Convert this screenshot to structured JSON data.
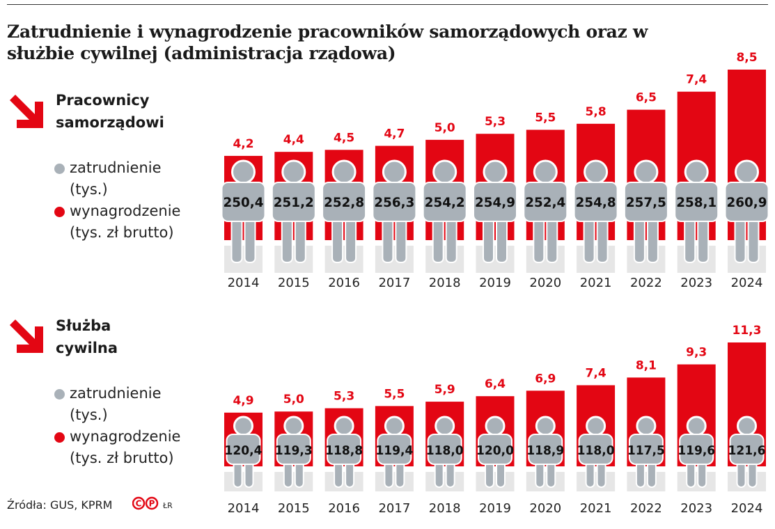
{
  "title": "Zatrudnienie i wynagrodzenie pracowników samorządowych oraz w służbie cywilnej (administracja rządowa)",
  "legend": {
    "employment": "zatrudnienie",
    "employment_unit": "(tys.)",
    "salary": "wynagrodzenie",
    "salary_unit": "(tys. zł brutto)"
  },
  "source": "Źródła: GUS, KPRM",
  "logo_text": "CP ŁR",
  "colors": {
    "salary": "#e30613",
    "employment": "#a9b1b8",
    "fade": "#e6e6e6"
  },
  "chart_data": [
    {
      "type": "bar",
      "title": "Pracownicy samorządowi",
      "title_lines": [
        "Pracownicy",
        "samorządowi"
      ],
      "categories": [
        "2014",
        "2015",
        "2016",
        "2017",
        "2018",
        "2019",
        "2020",
        "2021",
        "2022",
        "2023",
        "2024"
      ],
      "series": [
        {
          "name": "wynagrodzenie (tys. zł brutto)",
          "values": [
            4.2,
            4.4,
            4.5,
            4.7,
            5.0,
            5.3,
            5.5,
            5.8,
            6.5,
            7.4,
            8.5
          ],
          "labels": [
            "4,2",
            "4,4",
            "4,5",
            "4,7",
            "5,0",
            "5,3",
            "5,5",
            "5,8",
            "6,5",
            "7,4",
            "8,5"
          ]
        },
        {
          "name": "zatrudnienie (tys.)",
          "values": [
            250.4,
            251.2,
            252.8,
            256.3,
            254.2,
            254.9,
            252.4,
            254.8,
            257.5,
            258.1,
            260.9
          ],
          "labels": [
            "250,4",
            "251,2",
            "252,8",
            "256,3",
            "254,2",
            "254,9",
            "252,4",
            "254,8",
            "257,5",
            "258,1",
            "260,9"
          ]
        }
      ]
    },
    {
      "type": "bar",
      "title": "Służba cywilna",
      "title_lines": [
        "Służba",
        "cywilna"
      ],
      "categories": [
        "2014",
        "2015",
        "2016",
        "2017",
        "2018",
        "2019",
        "2020",
        "2021",
        "2022",
        "2023",
        "2024"
      ],
      "series": [
        {
          "name": "wynagrodzenie (tys. zł brutto)",
          "values": [
            4.9,
            5.0,
            5.3,
            5.5,
            5.9,
            6.4,
            6.9,
            7.4,
            8.1,
            9.3,
            11.3
          ],
          "labels": [
            "4,9",
            "5,0",
            "5,3",
            "5,5",
            "5,9",
            "6,4",
            "6,9",
            "7,4",
            "8,1",
            "9,3",
            "11,3"
          ]
        },
        {
          "name": "zatrudnienie (tys.)",
          "values": [
            120.4,
            119.3,
            118.8,
            119.4,
            118.0,
            120.0,
            118.9,
            118.0,
            117.5,
            119.6,
            121.6
          ],
          "labels": [
            "120,4",
            "119,3",
            "118,8",
            "119,4",
            "118,0",
            "120,0",
            "118,9",
            "118,0",
            "117,5",
            "119,6",
            "121,6"
          ]
        }
      ]
    }
  ]
}
